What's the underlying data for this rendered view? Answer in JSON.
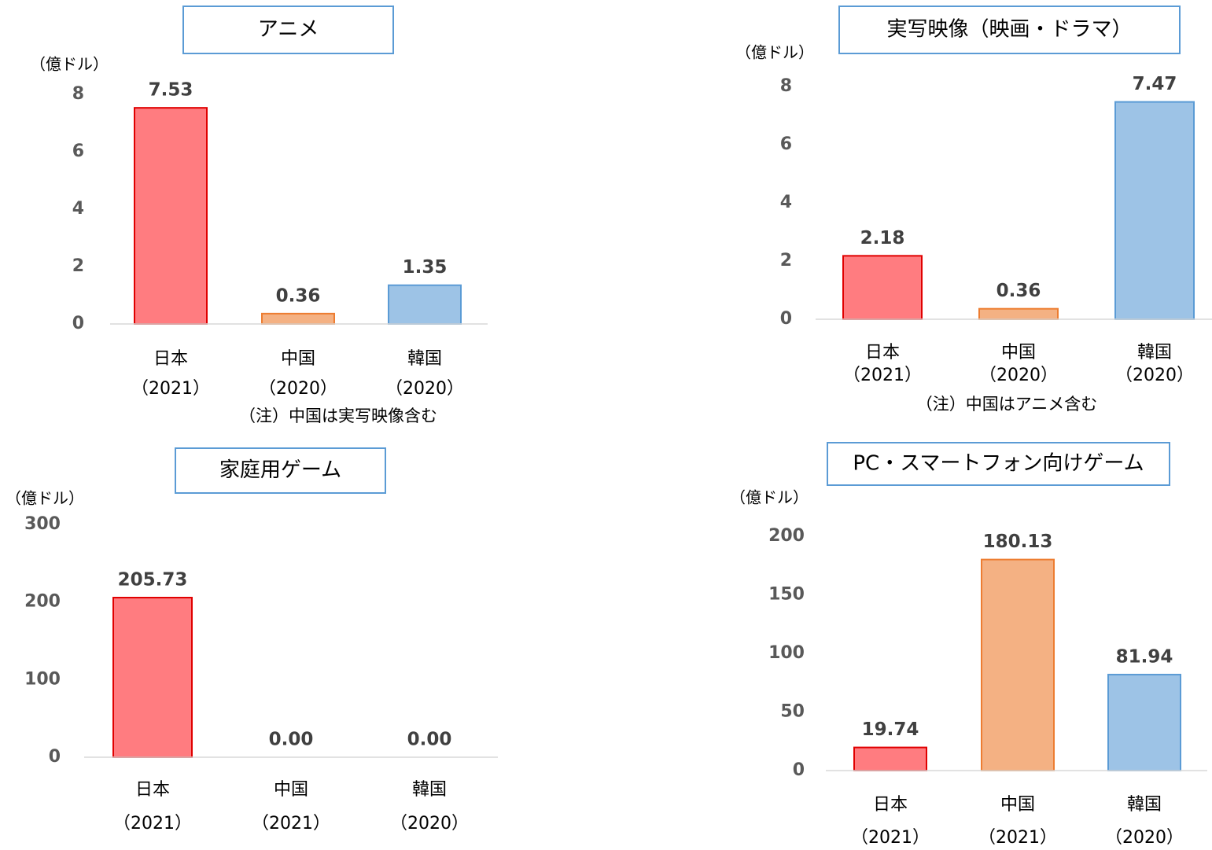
{
  "chart_data": [
    {
      "type": "bar",
      "title": "アニメ",
      "y_label": "（億ドル）",
      "categories": [
        [
          "日本",
          "（2021）"
        ],
        [
          "中国",
          "（2020）"
        ],
        [
          "韓国",
          "（2020）"
        ]
      ],
      "values": [
        7.53,
        0.36,
        1.35
      ],
      "value_labels": [
        "7.53",
        "0.36",
        "1.35"
      ],
      "colors": [
        "#ff7c80",
        "#f4b183",
        "#9dc3e6"
      ],
      "edge_colors": [
        "#e00000",
        "#ed7d31",
        "#5b9bd5"
      ],
      "ylim": [
        0,
        8
      ],
      "yticks": [
        0,
        2,
        4,
        6,
        8
      ],
      "note": "（注）中国は実写映像含む"
    },
    {
      "type": "bar",
      "title": "実写映像（映画・ドラマ）",
      "y_label": "（億ドル）",
      "categories": [
        [
          "日本",
          "（2021）"
        ],
        [
          "中国",
          "（2020）"
        ],
        [
          "韓国",
          "（2020）"
        ]
      ],
      "values": [
        2.18,
        0.36,
        7.47
      ],
      "value_labels": [
        "2.18",
        "0.36",
        "7.47"
      ],
      "colors": [
        "#ff7c80",
        "#f4b183",
        "#9dc3e6"
      ],
      "edge_colors": [
        "#e00000",
        "#ed7d31",
        "#5b9bd5"
      ],
      "ylim": [
        0,
        8
      ],
      "yticks": [
        0,
        2,
        4,
        6,
        8
      ],
      "note": "（注）中国はアニメ含む"
    },
    {
      "type": "bar",
      "title": "家庭用ゲーム",
      "y_label": "（億ドル）",
      "categories": [
        [
          "日本",
          "（2021）"
        ],
        [
          "中国",
          "（2021）"
        ],
        [
          "韓国",
          "（2020）"
        ]
      ],
      "values": [
        205.73,
        0,
        0
      ],
      "value_labels": [
        "205.73",
        "0.00",
        "0.00"
      ],
      "colors": [
        "#ff7c80",
        "#f4b183",
        "#9dc3e6"
      ],
      "edge_colors": [
        "#e00000",
        "#ed7d31",
        "#5b9bd5"
      ],
      "ylim": [
        0,
        300
      ],
      "yticks": [
        0,
        100,
        200,
        300
      ]
    },
    {
      "type": "bar",
      "title": "PC・スマートフォン向けゲーム",
      "y_label": "（億ドル）",
      "categories": [
        [
          "日本",
          "（2021）"
        ],
        [
          "中国",
          "（2021）"
        ],
        [
          "韓国",
          "（2020）"
        ]
      ],
      "values": [
        19.74,
        180.13,
        81.94
      ],
      "value_labels": [
        "19.74",
        "180.13",
        "81.94"
      ],
      "colors": [
        "#ff7c80",
        "#f4b183",
        "#9dc3e6"
      ],
      "edge_colors": [
        "#e00000",
        "#ed7d31",
        "#5b9bd5"
      ],
      "ylim": [
        0,
        200
      ],
      "yticks": [
        0,
        50,
        100,
        150,
        200
      ]
    }
  ]
}
